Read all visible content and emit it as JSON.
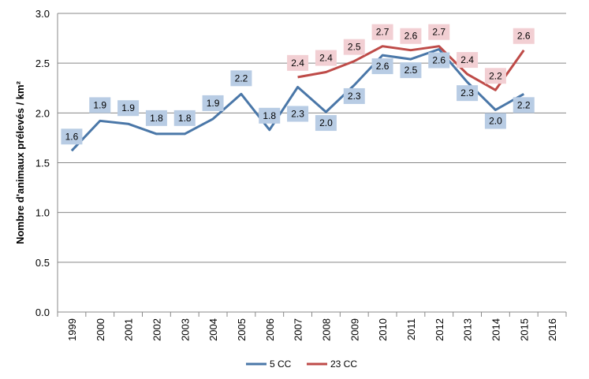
{
  "chart_data": {
    "type": "line",
    "title": "",
    "xlabel": "",
    "ylabel": "Nombre d'animaux prélevés / km²",
    "ylim": [
      0,
      3
    ],
    "yticks": [
      "0.0",
      "0.5",
      "1.0",
      "1.5",
      "2.0",
      "2.5",
      "3.0"
    ],
    "ytick_values": [
      0,
      0.5,
      1,
      1.5,
      2,
      2.5,
      3
    ],
    "categories": [
      "1999",
      "2000",
      "2001",
      "2002",
      "2003",
      "2004",
      "2005",
      "2006",
      "2007",
      "2008",
      "2009",
      "2010",
      "2011",
      "2012",
      "2013",
      "2014",
      "2015",
      "2016"
    ],
    "grid": true,
    "legend": "bottom",
    "series": [
      {
        "name": "5 CC",
        "color": "#4a77a8",
        "label_bg": "#b8cce4",
        "values": [
          1.62,
          1.92,
          1.89,
          1.79,
          1.79,
          1.94,
          2.19,
          1.83,
          2.26,
          2.01,
          2.28,
          2.58,
          2.54,
          2.64,
          2.31,
          2.03,
          2.19,
          null
        ],
        "labels": [
          "1.6",
          "1.9",
          "1.9",
          "1.8",
          "1.8",
          "1.9",
          "2.2",
          "1.8",
          "2.3",
          "2.0",
          "2.3",
          "2.6",
          "2.5",
          "2.6",
          "2.3",
          "2.0",
          "2.2",
          null
        ]
      },
      {
        "name": "23 CC",
        "color": "#be4b48",
        "label_bg": "#f2cfd3",
        "values": [
          null,
          null,
          null,
          null,
          null,
          null,
          null,
          null,
          2.36,
          2.41,
          2.52,
          2.67,
          2.63,
          2.67,
          2.39,
          2.23,
          2.63,
          null
        ],
        "labels": [
          null,
          null,
          null,
          null,
          null,
          null,
          null,
          null,
          "2.4",
          "2.4",
          "2.5",
          "2.7",
          "2.6",
          "2.7",
          "2.4",
          "2.2",
          "2.6",
          null
        ]
      }
    ]
  }
}
